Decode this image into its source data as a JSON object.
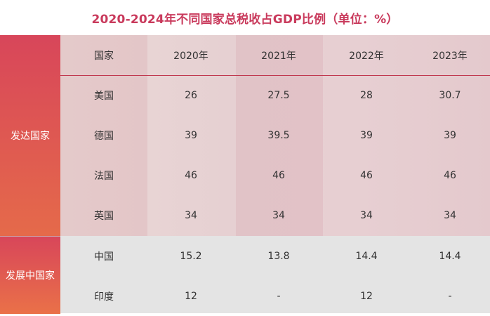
{
  "title": "2020-2024年不同国家总税收占GDP比例（单位：%）",
  "header": [
    "国家",
    "2020年",
    "2021年",
    "2022年",
    "2023年"
  ],
  "groups": [
    "发达国家",
    "发展中国家"
  ],
  "rows": [
    {
      "country": "美国",
      "values": [
        "26",
        "27.5",
        "28",
        "30.7"
      ]
    },
    {
      "country": "德国",
      "values": [
        "39",
        "39.5",
        "39",
        "39"
      ]
    },
    {
      "country": "法国",
      "values": [
        "46",
        "46",
        "46",
        "46"
      ]
    },
    {
      "country": "英国",
      "values": [
        "34",
        "34",
        "34",
        "34"
      ]
    },
    {
      "country": "中国",
      "values": [
        "15.2",
        "13.8",
        "14.4",
        "14.4"
      ]
    },
    {
      "country": "印度",
      "values": [
        "12",
        "-",
        "12",
        "-"
      ]
    }
  ]
}
